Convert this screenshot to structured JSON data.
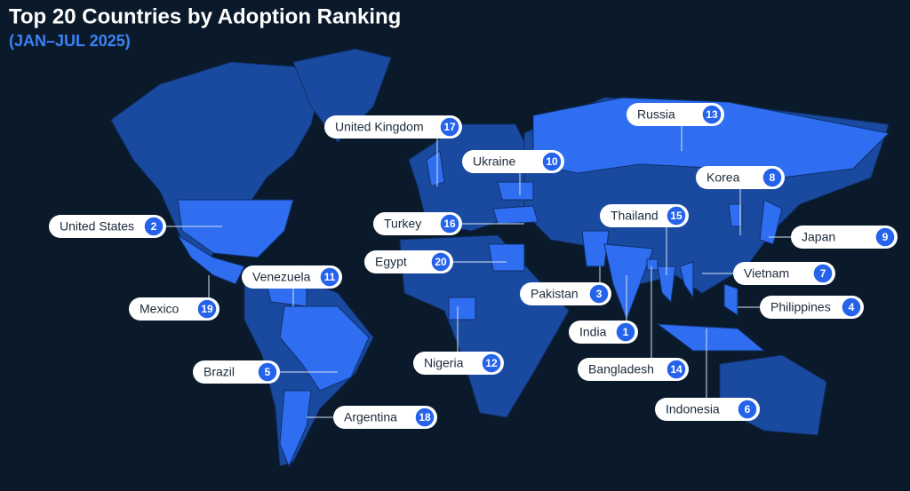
{
  "header": {
    "title": "Top 20 Countries by Adoption Ranking",
    "subtitle": "(JAN–JUL 2025)"
  },
  "labels": [
    {
      "country": "United Kingdom",
      "rank": 17
    },
    {
      "country": "Russia",
      "rank": 13
    },
    {
      "country": "Ukraine",
      "rank": 10
    },
    {
      "country": "Korea",
      "rank": 8
    },
    {
      "country": "United States",
      "rank": 2
    },
    {
      "country": "Turkey",
      "rank": 16
    },
    {
      "country": "Thailand",
      "rank": 15
    },
    {
      "country": "Japan",
      "rank": 9
    },
    {
      "country": "Egypt",
      "rank": 20
    },
    {
      "country": "Venezuela",
      "rank": 11
    },
    {
      "country": "Vietnam",
      "rank": 7
    },
    {
      "country": "Pakistan",
      "rank": 3
    },
    {
      "country": "Mexico",
      "rank": 19
    },
    {
      "country": "Philippines",
      "rank": 4
    },
    {
      "country": "India",
      "rank": 1
    },
    {
      "country": "Nigeria",
      "rank": 12
    },
    {
      "country": "Brazil",
      "rank": 5
    },
    {
      "country": "Bangladesh",
      "rank": 14
    },
    {
      "country": "Indonesia",
      "rank": 6
    },
    {
      "country": "Argentina",
      "rank": 18
    }
  ]
}
